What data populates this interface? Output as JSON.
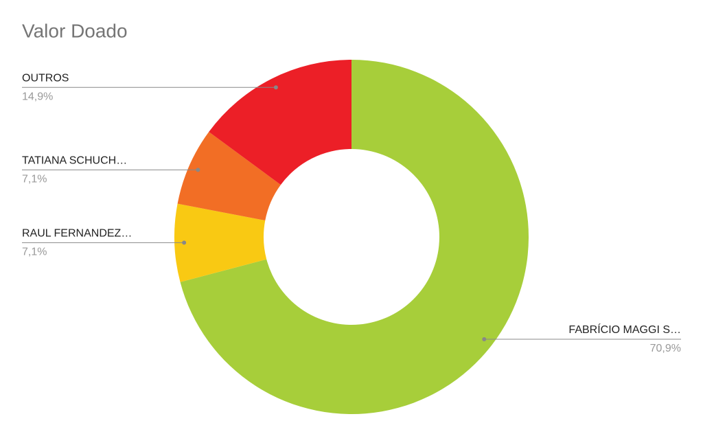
{
  "chart_data": {
    "type": "donut",
    "title": "Valor Doado",
    "categories": [
      "FABRÍCIO MAGGI S…",
      "RAUL FERNANDEZ…",
      "TATIANA SCHUCH…",
      "OUTROS"
    ],
    "values": [
      70.9,
      7.1,
      7.1,
      14.9
    ],
    "value_labels": [
      "70,9%",
      "7,1%",
      "7,1%",
      "14,9%"
    ],
    "colors": [
      "#a7ce3a",
      "#f9c913",
      "#f26e25",
      "#ec1f27"
    ]
  }
}
